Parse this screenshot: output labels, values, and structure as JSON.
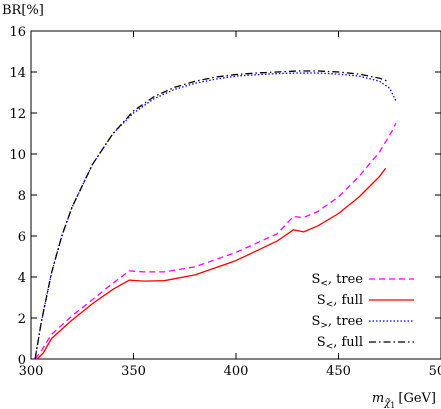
{
  "chart_data": {
    "type": "line",
    "title": "",
    "ylabel": "BR[%]",
    "xlabel": {
      "base": "m",
      "sub": "χ̃",
      "subsub": "1",
      "unit": "[GeV]"
    },
    "xlim": [
      300,
      500
    ],
    "ylim": [
      0,
      16
    ],
    "xticks": [
      300,
      350,
      400,
      450,
      500
    ],
    "yticks": [
      0,
      2,
      4,
      6,
      8,
      10,
      12,
      14,
      16
    ],
    "grid": false,
    "legend_position": "bottom-right",
    "series": [
      {
        "name": "S<, tree",
        "label_base": "S",
        "label_sub": "<",
        "label_rest": ", tree",
        "color": "#ff00ff",
        "dash": "6,4",
        "x": [
          302,
          305,
          310,
          320,
          330,
          340,
          348,
          355,
          365,
          380,
          400,
          420,
          428,
          433,
          440,
          450,
          460,
          470,
          476,
          478
        ],
        "y": [
          0.0,
          0.4,
          1.2,
          2.1,
          2.9,
          3.7,
          4.3,
          4.25,
          4.25,
          4.5,
          5.2,
          6.1,
          6.95,
          6.9,
          7.2,
          7.9,
          8.9,
          10.1,
          11.1,
          11.5
        ]
      },
      {
        "name": "S<, full",
        "label_base": "S",
        "label_sub": "<",
        "label_rest": ", full",
        "color": "#ff0000",
        "dash": "",
        "x": [
          303,
          306,
          310,
          320,
          330,
          340,
          348,
          355,
          365,
          380,
          400,
          420,
          428,
          433,
          440,
          450,
          460,
          470,
          473
        ],
        "y": [
          0.0,
          0.3,
          1.0,
          1.9,
          2.7,
          3.4,
          3.85,
          3.8,
          3.82,
          4.1,
          4.8,
          5.75,
          6.3,
          6.2,
          6.5,
          7.1,
          7.9,
          8.9,
          9.3
        ]
      },
      {
        "name": "S>, tree",
        "label_base": "S",
        "label_sub": ">",
        "label_rest": ", tree",
        "color": "#0000ff",
        "dash": "1.5,2",
        "x": [
          302,
          305,
          310,
          315,
          320,
          330,
          340,
          350,
          360,
          370,
          380,
          390,
          400,
          410,
          420,
          430,
          440,
          450,
          460,
          470,
          475,
          478
        ],
        "y": [
          0.0,
          1.8,
          4.2,
          6.0,
          7.4,
          9.5,
          11.0,
          12.0,
          12.7,
          13.15,
          13.45,
          13.65,
          13.8,
          13.87,
          13.92,
          13.95,
          13.95,
          13.9,
          13.8,
          13.55,
          13.2,
          12.6
        ]
      },
      {
        "name": "S<, full",
        "label_base": "S",
        "label_sub": "<",
        "label_rest": ", full",
        "color": "#000000",
        "dash": "7,3,1.5,3",
        "x": [
          302,
          305,
          310,
          315,
          320,
          330,
          340,
          350,
          360,
          370,
          380,
          390,
          400,
          410,
          420,
          430,
          440,
          450,
          460,
          470,
          474
        ],
        "y": [
          0.0,
          1.8,
          4.2,
          6.0,
          7.4,
          9.5,
          11.0,
          12.1,
          12.8,
          13.25,
          13.55,
          13.75,
          13.88,
          13.95,
          14.0,
          14.05,
          14.05,
          14.0,
          13.9,
          13.7,
          13.55
        ]
      }
    ]
  }
}
